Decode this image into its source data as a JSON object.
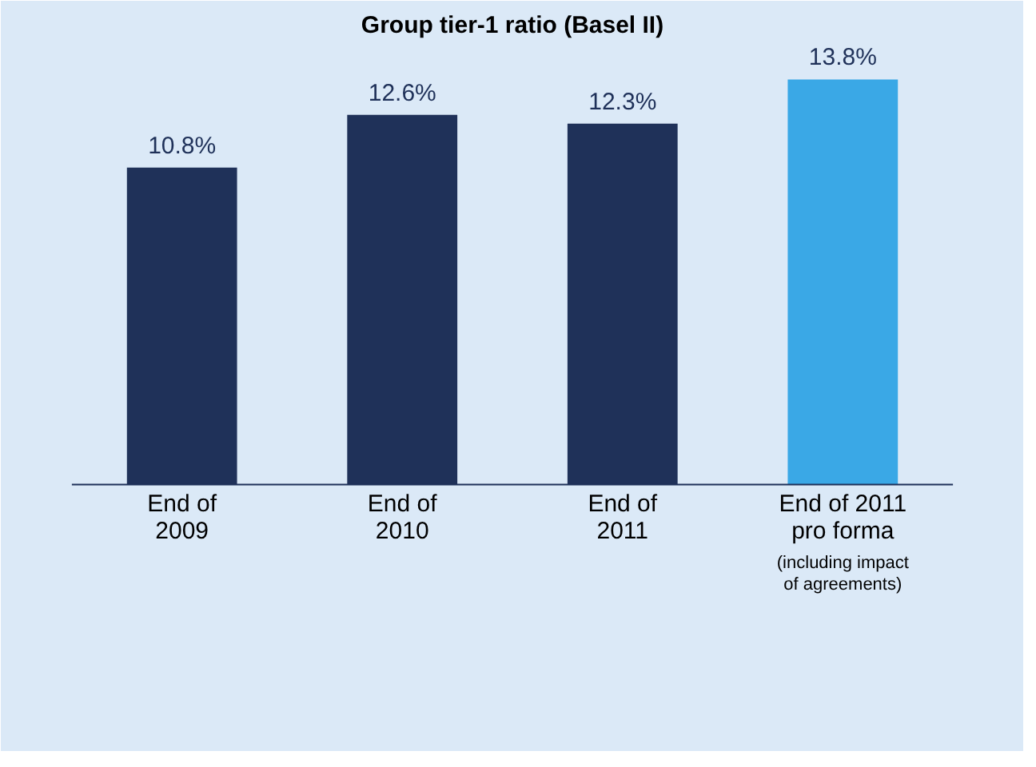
{
  "chart_data": {
    "type": "bar",
    "title": "Group tier-1 ratio (Basel II)",
    "categories": [
      "End of\n2009",
      "End of\n2010",
      "End of\n2011",
      "End of 2011\npro forma"
    ],
    "values": [
      10.8,
      12.6,
      12.3,
      13.8
    ],
    "colors": [
      "#1f3159",
      "#1f3159",
      "#1f3159",
      "#3aa8e6"
    ],
    "value_labels": [
      "10.8%",
      "12.6%",
      "12.3%",
      "13.8%"
    ],
    "annotations": [
      "(including impact\nof agreements)"
    ]
  }
}
